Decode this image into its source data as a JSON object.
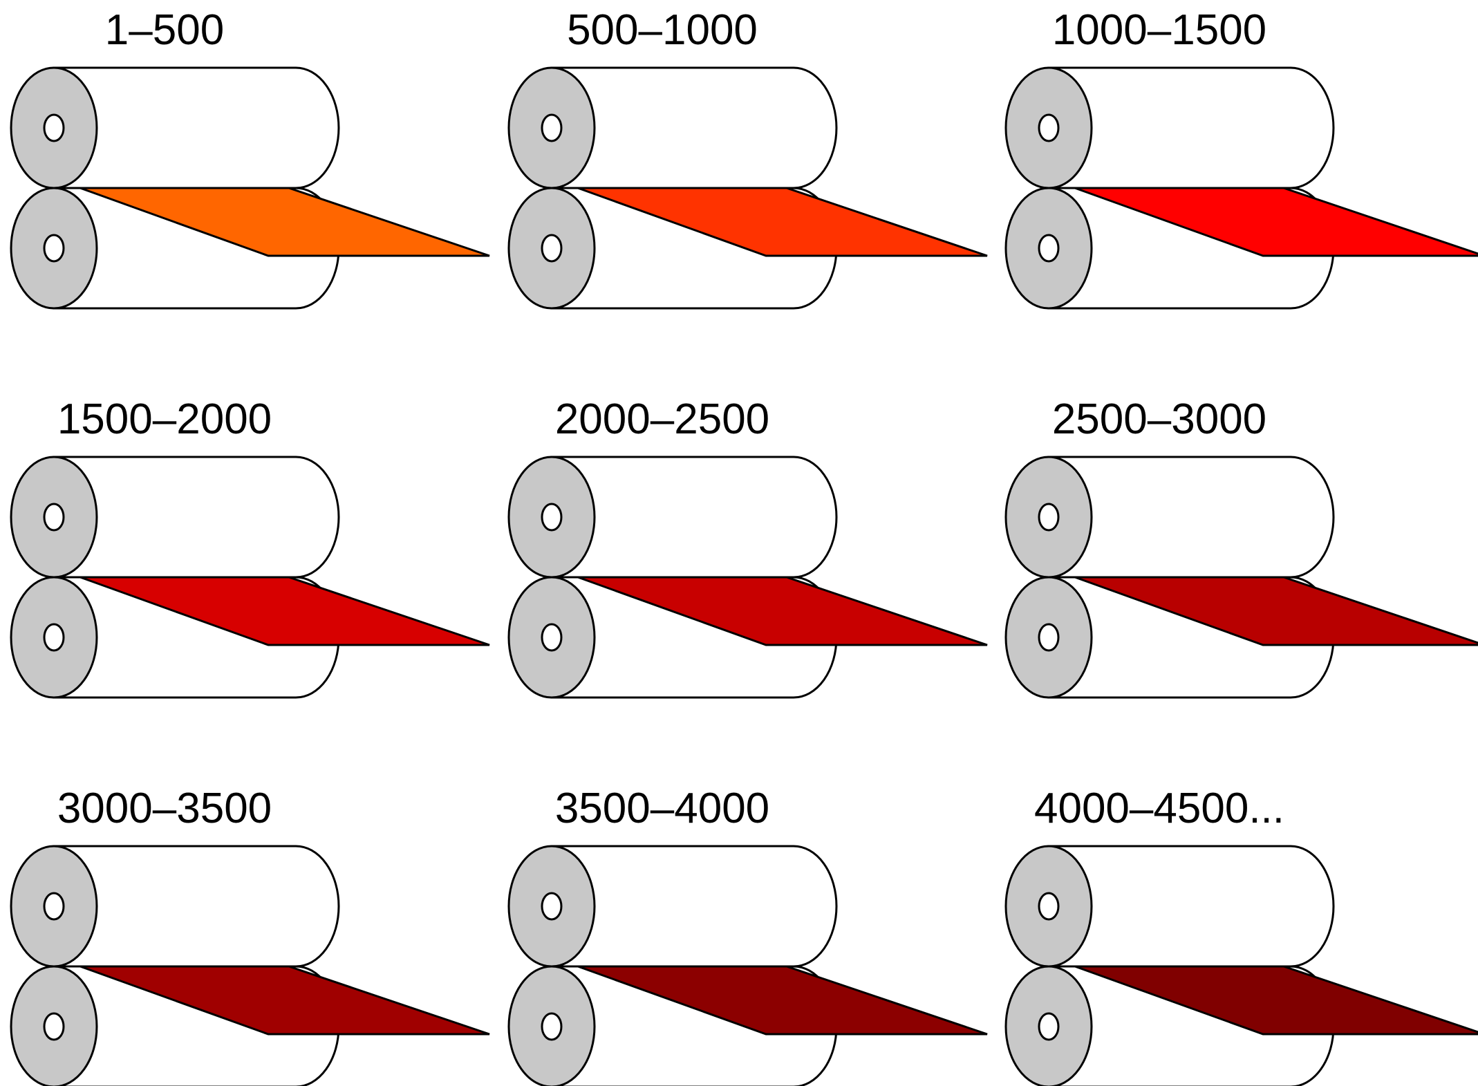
{
  "roller_end_color": "#c8c8c8",
  "panels": [
    {
      "label": "1–500",
      "sheet_color": "#ff6600"
    },
    {
      "label": "500–1000",
      "sheet_color": "#ff3300"
    },
    {
      "label": "1000–1500",
      "sheet_color": "#ff0000"
    },
    {
      "label": "1500–2000",
      "sheet_color": "#d70000"
    },
    {
      "label": "2000–2500",
      "sheet_color": "#c80000"
    },
    {
      "label": "2500–3000",
      "sheet_color": "#b80000"
    },
    {
      "label": "3000–3500",
      "sheet_color": "#a00000"
    },
    {
      "label": "3500–4000",
      "sheet_color": "#8c0000"
    },
    {
      "label": "4000–4500...",
      "sheet_color": "#800000"
    }
  ]
}
